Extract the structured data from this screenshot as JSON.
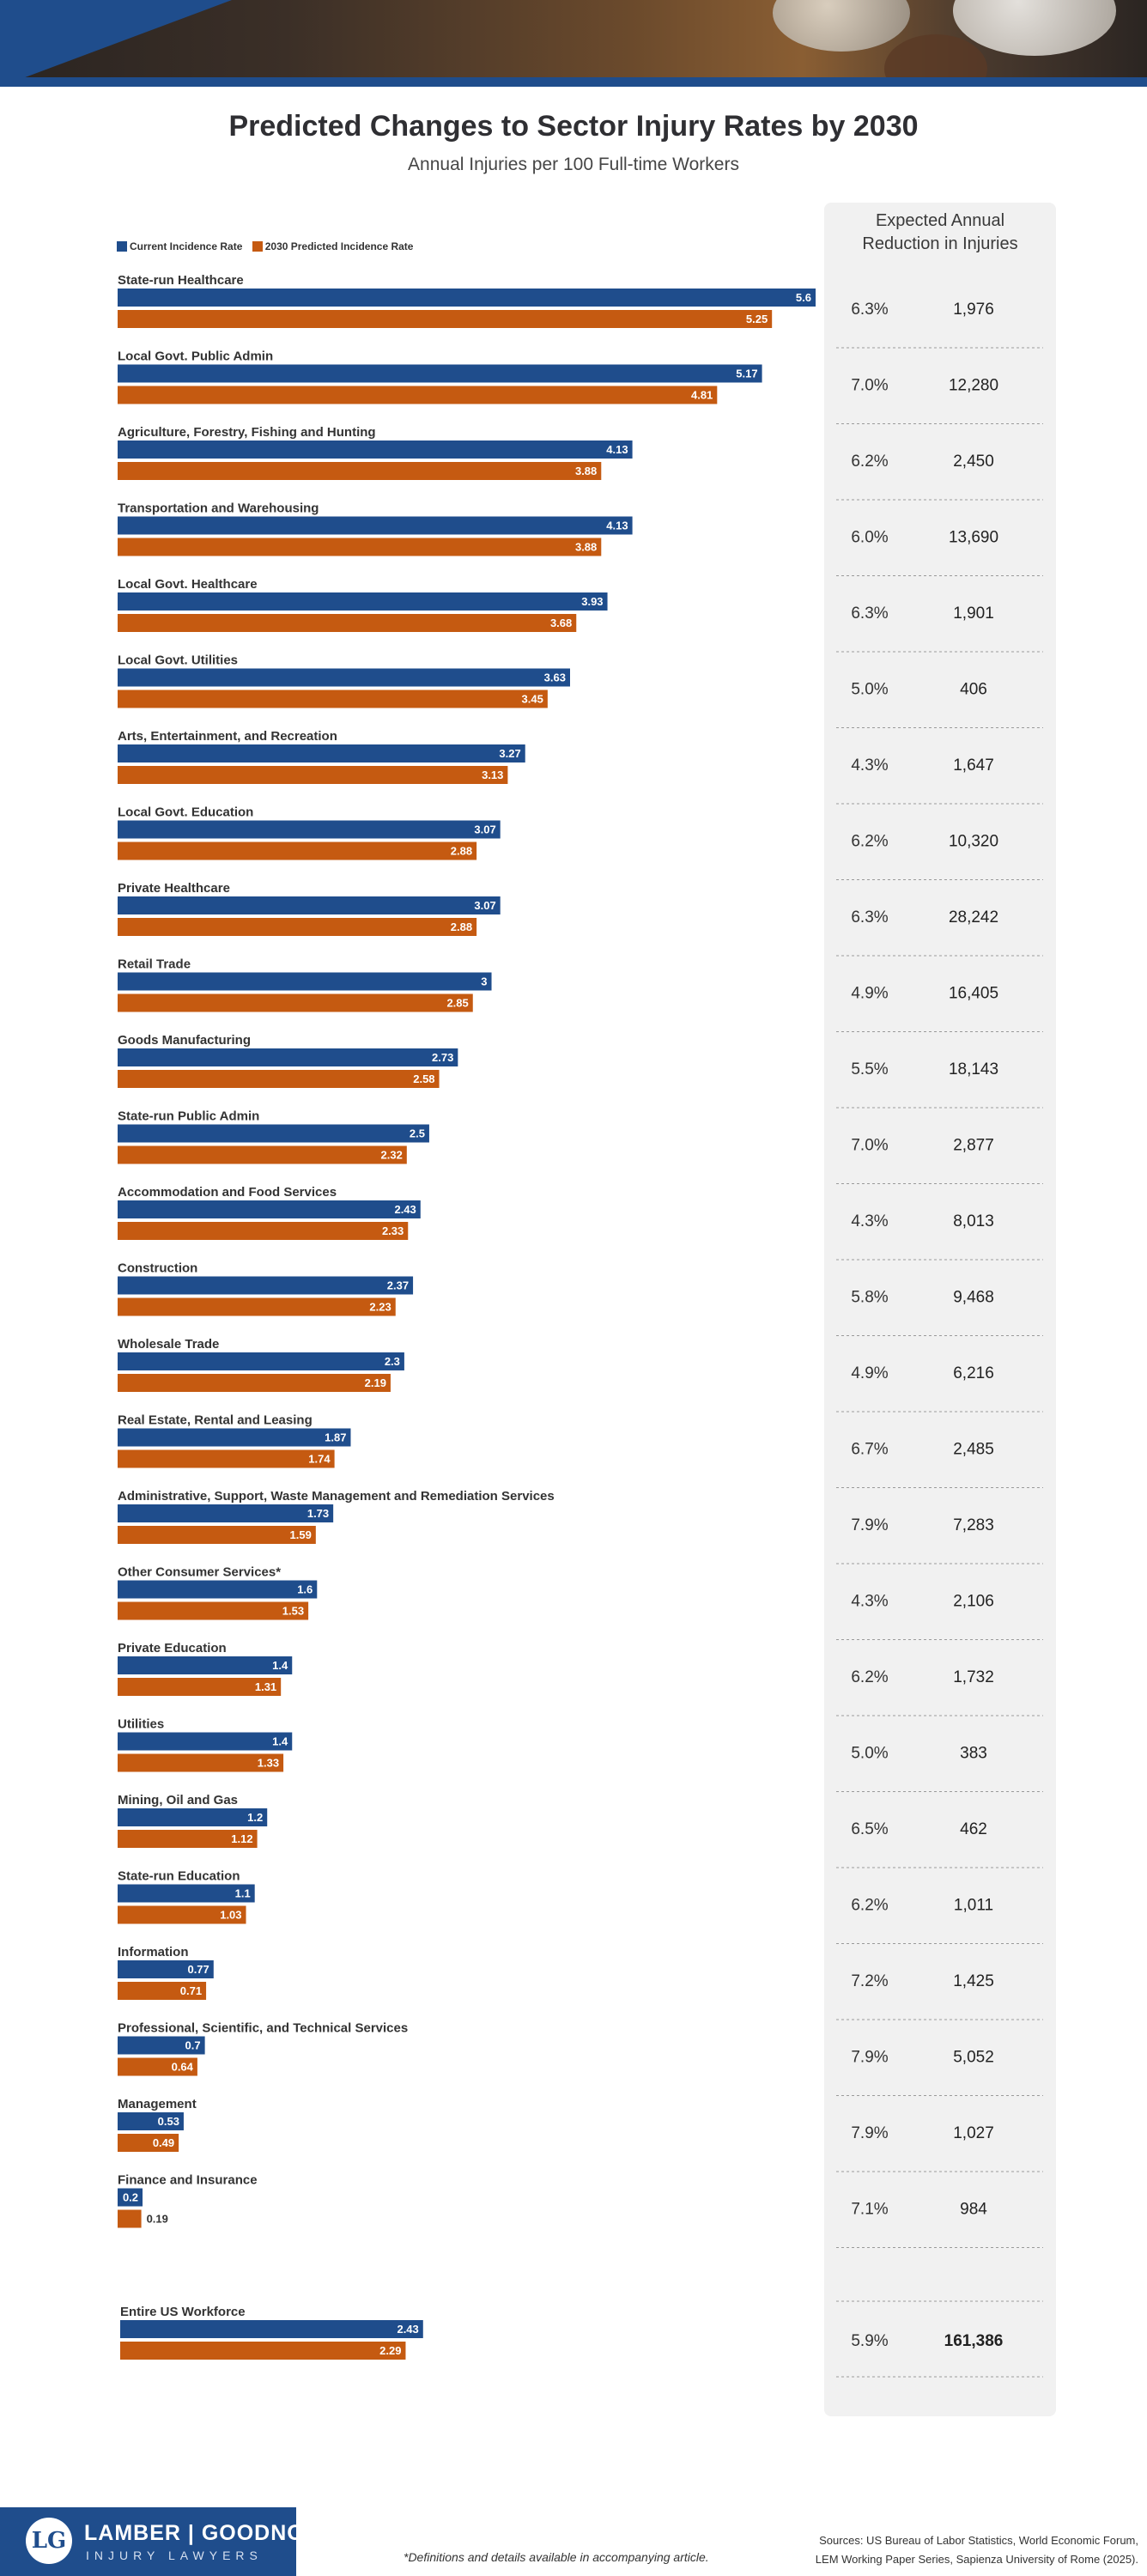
{
  "title": "Predicted Changes to Sector Injury Rates by 2030",
  "subtitle": "Annual Injuries per 100 Full-time Workers",
  "panel_title_line1": "Expected Annual",
  "panel_title_line2": "Reduction in Injuries",
  "colors": {
    "current": "#1f4d8c",
    "predicted": "#c55a11",
    "panel": "#f1f1f1"
  },
  "legend": {
    "current": "Current Incidence Rate",
    "predicted": "2030 Predicted Incidence Rate"
  },
  "chart_data": {
    "type": "bar",
    "orientation": "horizontal",
    "series_names": [
      "Current Incidence Rate",
      "2030 Predicted Incidence Rate"
    ],
    "xlim": [
      0,
      5.6
    ],
    "rows": [
      {
        "label": "State-run Healthcare",
        "current": 5.6,
        "current_label": "5.6",
        "predicted": 5.25,
        "predicted_label": "5.25",
        "pct": "6.3%",
        "reduction": "1,976"
      },
      {
        "label": "Local Govt. Public Admin",
        "current": 5.17,
        "current_label": "5.17",
        "predicted": 4.81,
        "predicted_label": "4.81",
        "pct": "7.0%",
        "reduction": "12,280"
      },
      {
        "label": "Agriculture, Forestry, Fishing and Hunting",
        "current": 4.13,
        "current_label": "4.13",
        "predicted": 3.88,
        "predicted_label": "3.88",
        "pct": "6.2%",
        "reduction": "2,450"
      },
      {
        "label": "Transportation and Warehousing",
        "current": 4.13,
        "current_label": "4.13",
        "predicted": 3.88,
        "predicted_label": "3.88",
        "pct": "6.0%",
        "reduction": "13,690"
      },
      {
        "label": "Local Govt. Healthcare",
        "current": 3.93,
        "current_label": "3.93",
        "predicted": 3.68,
        "predicted_label": "3.68",
        "pct": "6.3%",
        "reduction": "1,901"
      },
      {
        "label": "Local Govt. Utilities",
        "current": 3.63,
        "current_label": "3.63",
        "predicted": 3.45,
        "predicted_label": "3.45",
        "pct": "5.0%",
        "reduction": "406"
      },
      {
        "label": "Arts, Entertainment, and Recreation",
        "current": 3.27,
        "current_label": "3.27",
        "predicted": 3.13,
        "predicted_label": "3.13",
        "pct": "4.3%",
        "reduction": "1,647"
      },
      {
        "label": "Local Govt. Education",
        "current": 3.07,
        "current_label": "3.07",
        "predicted": 2.88,
        "predicted_label": "2.88",
        "pct": "6.2%",
        "reduction": "10,320"
      },
      {
        "label": "Private Healthcare",
        "current": 3.07,
        "current_label": "3.07",
        "predicted": 2.88,
        "predicted_label": "2.88",
        "pct": "6.3%",
        "reduction": "28,242"
      },
      {
        "label": "Retail Trade",
        "current": 3,
        "current_label": "3",
        "predicted": 2.85,
        "predicted_label": "2.85",
        "pct": "4.9%",
        "reduction": "16,405"
      },
      {
        "label": "Goods Manufacturing",
        "current": 2.73,
        "current_label": "2.73",
        "predicted": 2.58,
        "predicted_label": "2.58",
        "pct": "5.5%",
        "reduction": "18,143"
      },
      {
        "label": "State-run Public Admin",
        "current": 2.5,
        "current_label": "2.5",
        "predicted": 2.32,
        "predicted_label": "2.32",
        "pct": "7.0%",
        "reduction": "2,877"
      },
      {
        "label": "Accommodation and Food Services",
        "current": 2.43,
        "current_label": "2.43",
        "predicted": 2.33,
        "predicted_label": "2.33",
        "pct": "4.3%",
        "reduction": "8,013"
      },
      {
        "label": "Construction",
        "current": 2.37,
        "current_label": "2.37",
        "predicted": 2.23,
        "predicted_label": "2.23",
        "pct": "5.8%",
        "reduction": "9,468"
      },
      {
        "label": "Wholesale Trade",
        "current": 2.3,
        "current_label": "2.3",
        "predicted": 2.19,
        "predicted_label": "2.19",
        "pct": "4.9%",
        "reduction": "6,216"
      },
      {
        "label": "Real Estate, Rental and Leasing",
        "current": 1.87,
        "current_label": "1.87",
        "predicted": 1.74,
        "predicted_label": "1.74",
        "pct": "6.7%",
        "reduction": "2,485"
      },
      {
        "label": "Administrative, Support, Waste Management and Remediation Services",
        "current": 1.73,
        "current_label": "1.73",
        "predicted": 1.59,
        "predicted_label": "1.59",
        "pct": "7.9%",
        "reduction": "7,283"
      },
      {
        "label": "Other Consumer Services*",
        "current": 1.6,
        "current_label": "1.6",
        "predicted": 1.53,
        "predicted_label": "1.53",
        "pct": "4.3%",
        "reduction": "2,106"
      },
      {
        "label": "Private Education",
        "current": 1.4,
        "current_label": "1.4",
        "predicted": 1.31,
        "predicted_label": "1.31",
        "pct": "6.2%",
        "reduction": "1,732"
      },
      {
        "label": "Utilities",
        "current": 1.4,
        "current_label": "1.4",
        "predicted": 1.33,
        "predicted_label": "1.33",
        "pct": "5.0%",
        "reduction": "383"
      },
      {
        "label": "Mining, Oil and Gas",
        "current": 1.2,
        "current_label": "1.2",
        "predicted": 1.12,
        "predicted_label": "1.12",
        "pct": "6.5%",
        "reduction": "462"
      },
      {
        "label": "State-run Education",
        "current": 1.1,
        "current_label": "1.1",
        "predicted": 1.03,
        "predicted_label": "1.03",
        "pct": "6.2%",
        "reduction": "1,011"
      },
      {
        "label": "Information",
        "current": 0.77,
        "current_label": "0.77",
        "predicted": 0.71,
        "predicted_label": "0.71",
        "pct": "7.2%",
        "reduction": "1,425"
      },
      {
        "label": "Professional, Scientific, and Technical Services",
        "current": 0.7,
        "current_label": "0.7",
        "predicted": 0.64,
        "predicted_label": "0.64",
        "pct": "7.9%",
        "reduction": "5,052"
      },
      {
        "label": "Management",
        "current": 0.53,
        "current_label": "0.53",
        "predicted": 0.49,
        "predicted_label": "0.49",
        "pct": "7.9%",
        "reduction": "1,027"
      },
      {
        "label": "Finance and Insurance",
        "current": 0.2,
        "current_label": "0.2",
        "predicted": 0.19,
        "predicted_label": "0.19",
        "pct": "7.1%",
        "reduction": "984"
      }
    ],
    "total": {
      "label": "Entire US Workforce",
      "current": 2.43,
      "current_label": "2.43",
      "predicted": 2.29,
      "predicted_label": "2.29",
      "pct": "5.9%",
      "reduction": "161,386"
    }
  },
  "footer": {
    "logo_mark": "LG",
    "logo_name": "LAMBER | GOODNOW",
    "logo_sub": "INJURY LAWYERS",
    "footnote": "*Definitions and details available in accompanying article.",
    "sources_line1": "Sources: US Bureau of Labor Statistics, World Economic Forum,",
    "sources_line2": "LEM Working Paper Series, Sapienza University of Rome (2025)."
  }
}
